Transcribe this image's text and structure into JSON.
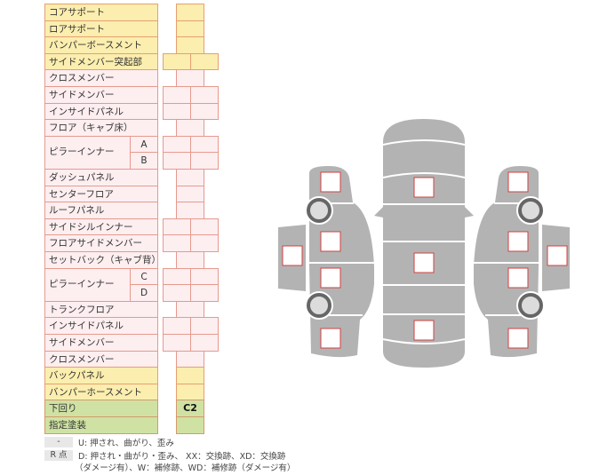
{
  "rows": [
    {
      "label": "コアサポート",
      "color": "y",
      "cells": "single",
      "value": ""
    },
    {
      "label": "ロアサポート",
      "color": "y",
      "cells": "single",
      "value": ""
    },
    {
      "label": "バンパーボースメント",
      "color": "y",
      "cells": "single",
      "value": ""
    },
    {
      "label": "サイドメンバー突起部",
      "color": "y",
      "cells": "double",
      "value": ""
    },
    {
      "label": "クロスメンバー",
      "color": "p",
      "cells": "single",
      "value": ""
    },
    {
      "label": "サイドメンバー",
      "color": "p",
      "cells": "double",
      "value": ""
    },
    {
      "label": "インサイドパネル",
      "color": "p",
      "cells": "double",
      "value": ""
    },
    {
      "label": "フロア（キャブ床）",
      "color": "p",
      "cells": "single",
      "value": ""
    },
    {
      "label": "ピラーインナー",
      "sub": "A",
      "color": "p",
      "cells": "double",
      "value": ""
    },
    {
      "label": "",
      "sub": "B",
      "color": "p",
      "cells": "double",
      "value": ""
    },
    {
      "label": "ダッシュパネル",
      "color": "p",
      "cells": "single",
      "value": ""
    },
    {
      "label": "センターフロア",
      "color": "p",
      "cells": "single",
      "value": ""
    },
    {
      "label": "ルーフパネル",
      "color": "p",
      "cells": "single",
      "value": ""
    },
    {
      "label": "サイドシルインナー",
      "color": "p",
      "cells": "double",
      "value": ""
    },
    {
      "label": "フロアサイドメンバー",
      "color": "p",
      "cells": "double",
      "value": ""
    },
    {
      "label": "セットバック（キャブ背）",
      "color": "p",
      "cells": "single",
      "value": ""
    },
    {
      "label": "ピラーインナー",
      "sub": "C",
      "color": "p",
      "cells": "double",
      "value": ""
    },
    {
      "label": "",
      "sub": "D",
      "color": "p",
      "cells": "double",
      "value": ""
    },
    {
      "label": "トランクフロア",
      "color": "p",
      "cells": "single",
      "value": ""
    },
    {
      "label": "インサイドパネル",
      "color": "p",
      "cells": "double",
      "value": ""
    },
    {
      "label": "サイドメンバー",
      "color": "p",
      "cells": "double",
      "value": ""
    },
    {
      "label": "クロスメンバー",
      "color": "p",
      "cells": "single",
      "value": ""
    },
    {
      "label": "バックパネル",
      "color": "y",
      "cells": "single",
      "value": ""
    },
    {
      "label": "バンパーホースメント",
      "color": "y",
      "cells": "single",
      "value": ""
    },
    {
      "label": "下回り",
      "color": "g",
      "cells": "single",
      "value": "C2"
    },
    {
      "label": "指定塗装",
      "color": "g",
      "cells": "single",
      "value": ""
    }
  ],
  "legend": {
    "key1": "-",
    "text1": "U: 押され、曲がり、歪み",
    "key2": "R 点",
    "text2": "D: 押され・曲がり・歪み、 XX：交換跡、XD：交換跡",
    "text3": "（ダメージ有）、W：補修跡、WD：補修跡（ダメージ有）"
  },
  "colors": {
    "panel": "#b3b3b3",
    "box_border": "#d04040",
    "wheel": "#666666",
    "wheel_hub": "#dcdcdc"
  }
}
